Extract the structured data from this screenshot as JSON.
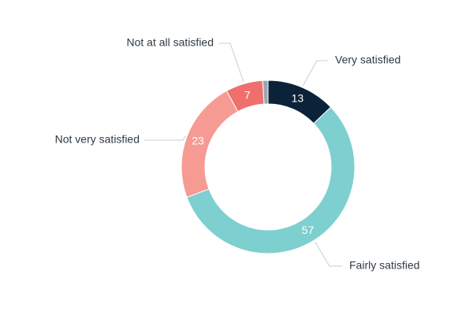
{
  "chart_data": {
    "type": "pie",
    "donut": true,
    "categories": [
      "Very satisfied",
      "Fairly satisfied",
      "Not very satisfied",
      "Not at all satisfied",
      ""
    ],
    "values": [
      13,
      57,
      23,
      7,
      1
    ],
    "value_labels": [
      "13",
      "57",
      "23",
      "7",
      ""
    ],
    "colors": [
      "#0b2239",
      "#7ecfd0",
      "#f59b94",
      "#ef6f6c",
      "#9aa7b0"
    ],
    "start_angle_deg": 0,
    "direction": "clockwise",
    "title": "",
    "legend": "none"
  }
}
